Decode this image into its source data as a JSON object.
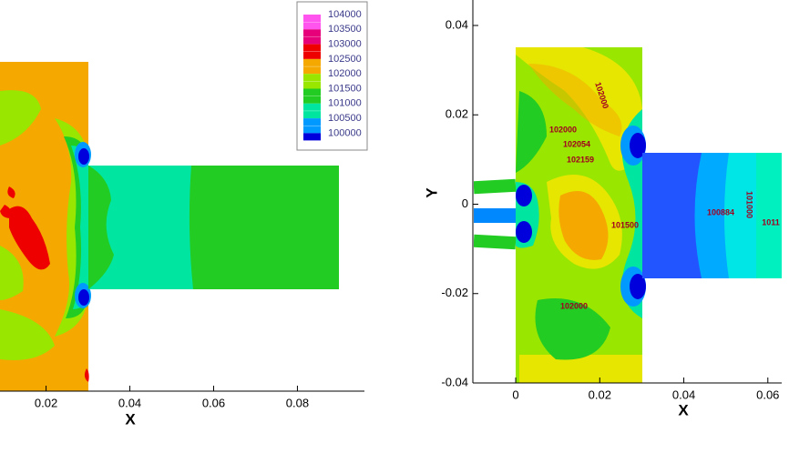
{
  "chart_data": [
    {
      "type": "contour",
      "xlabel": "X",
      "xlim": [
        0.009,
        0.096
      ],
      "xticks": [
        0.02,
        0.04,
        0.06,
        0.08
      ],
      "legend": {
        "levels": [
          104000,
          103500,
          103000,
          102500,
          102000,
          101500,
          101000,
          100500,
          100000
        ],
        "colors": [
          "#ffffff",
          "#ff55ee",
          "#e6007a",
          "#ee0000",
          "#f5a800",
          "#99e600",
          "#22cc22",
          "#00e6a0",
          "#0099ff",
          "#0000dd"
        ]
      }
    },
    {
      "type": "contour",
      "xlabel": "X",
      "ylabel": "Y",
      "xlim": [
        -0.0102,
        0.0633
      ],
      "ylim": [
        -0.04,
        0.0457
      ],
      "xticks": [
        0,
        0.02,
        0.04,
        0.06
      ],
      "yticks": [
        -0.04,
        -0.02,
        0,
        0.02,
        0.04
      ],
      "contour_labels": [
        102000,
        102000,
        102054,
        102159,
        101500,
        100884,
        101000,
        1011,
        102000
      ]
    }
  ]
}
